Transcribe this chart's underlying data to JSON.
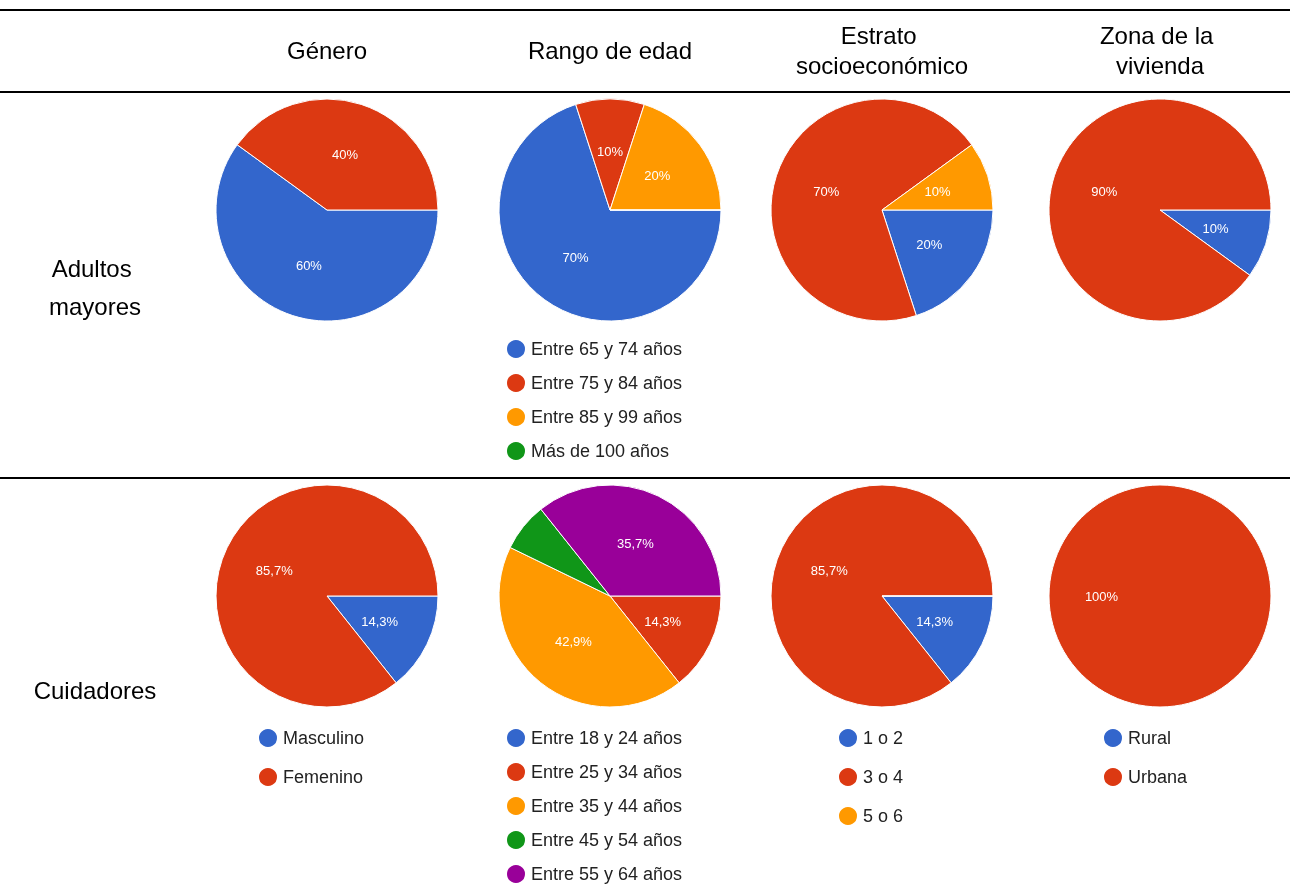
{
  "chart_data": [
    {
      "type": "pie",
      "title": "Género",
      "ylabel": "Adultos mayores",
      "categories": [
        null,
        null
      ],
      "values": [
        60,
        40
      ],
      "colors": [
        "#3366cc",
        "#dc3912"
      ],
      "value_labels": [
        "60%",
        "40%"
      ],
      "legend": false
    },
    {
      "type": "pie",
      "title": "Rango de edad",
      "categories": [
        "Entre 65 y 74 años",
        "Entre 75 y 84 años",
        "Entre 85 y 99 años",
        "Más de 100 años"
      ],
      "values": [
        70,
        10,
        20,
        0
      ],
      "colors": [
        "#3366cc",
        "#dc3912",
        "#ff9900",
        "#109618"
      ],
      "value_labels": [
        "70%",
        "10%",
        "20%",
        null
      ],
      "legend": "bottom"
    },
    {
      "type": "pie",
      "title": "Estrato socioeconómico",
      "categories": [
        null,
        null,
        null
      ],
      "values": [
        20,
        70,
        10
      ],
      "colors": [
        "#3366cc",
        "#dc3912",
        "#ff9900"
      ],
      "value_labels": [
        "20%",
        "70%",
        "10%"
      ],
      "legend": false
    },
    {
      "type": "pie",
      "title": "Zona de la vivienda",
      "categories": [
        null,
        null
      ],
      "values": [
        10,
        90
      ],
      "colors": [
        "#3366cc",
        "#dc3912"
      ],
      "value_labels": [
        "10%",
        "90%"
      ],
      "legend": false
    },
    {
      "type": "pie",
      "ylabel": "Cuidadores",
      "categories": [
        "Masculino",
        "Femenino"
      ],
      "values": [
        14.3,
        85.7
      ],
      "colors": [
        "#3366cc",
        "#dc3912"
      ],
      "value_labels": [
        "14,3%",
        "85,7%"
      ],
      "legend": "bottom"
    },
    {
      "type": "pie",
      "categories": [
        "Entre 18 y 24 años",
        "Entre 25 y 34 años",
        "Entre 35 y 44 años",
        "Entre 45 y 54 años",
        "Entre 55 y 64 años"
      ],
      "values": [
        0,
        14.3,
        42.9,
        7.1,
        35.7
      ],
      "colors": [
        "#3366cc",
        "#dc3912",
        "#ff9900",
        "#109618",
        "#990099"
      ],
      "value_labels": [
        null,
        "14,3%",
        "42,9%",
        null,
        "35,7%"
      ],
      "legend": "bottom"
    },
    {
      "type": "pie",
      "categories": [
        "1 o 2",
        "3 o 4",
        "5 o 6"
      ],
      "values": [
        14.3,
        85.7,
        0
      ],
      "colors": [
        "#3366cc",
        "#dc3912",
        "#ff9900"
      ],
      "value_labels": [
        "14,3%",
        "85,7%",
        null
      ],
      "legend": "bottom"
    },
    {
      "type": "pie",
      "categories": [
        "Rural",
        "Urbana"
      ],
      "values": [
        0,
        100
      ],
      "colors": [
        "#3366cc",
        "#dc3912"
      ],
      "value_labels": [
        null,
        "100%"
      ],
      "legend": "bottom"
    }
  ]
}
